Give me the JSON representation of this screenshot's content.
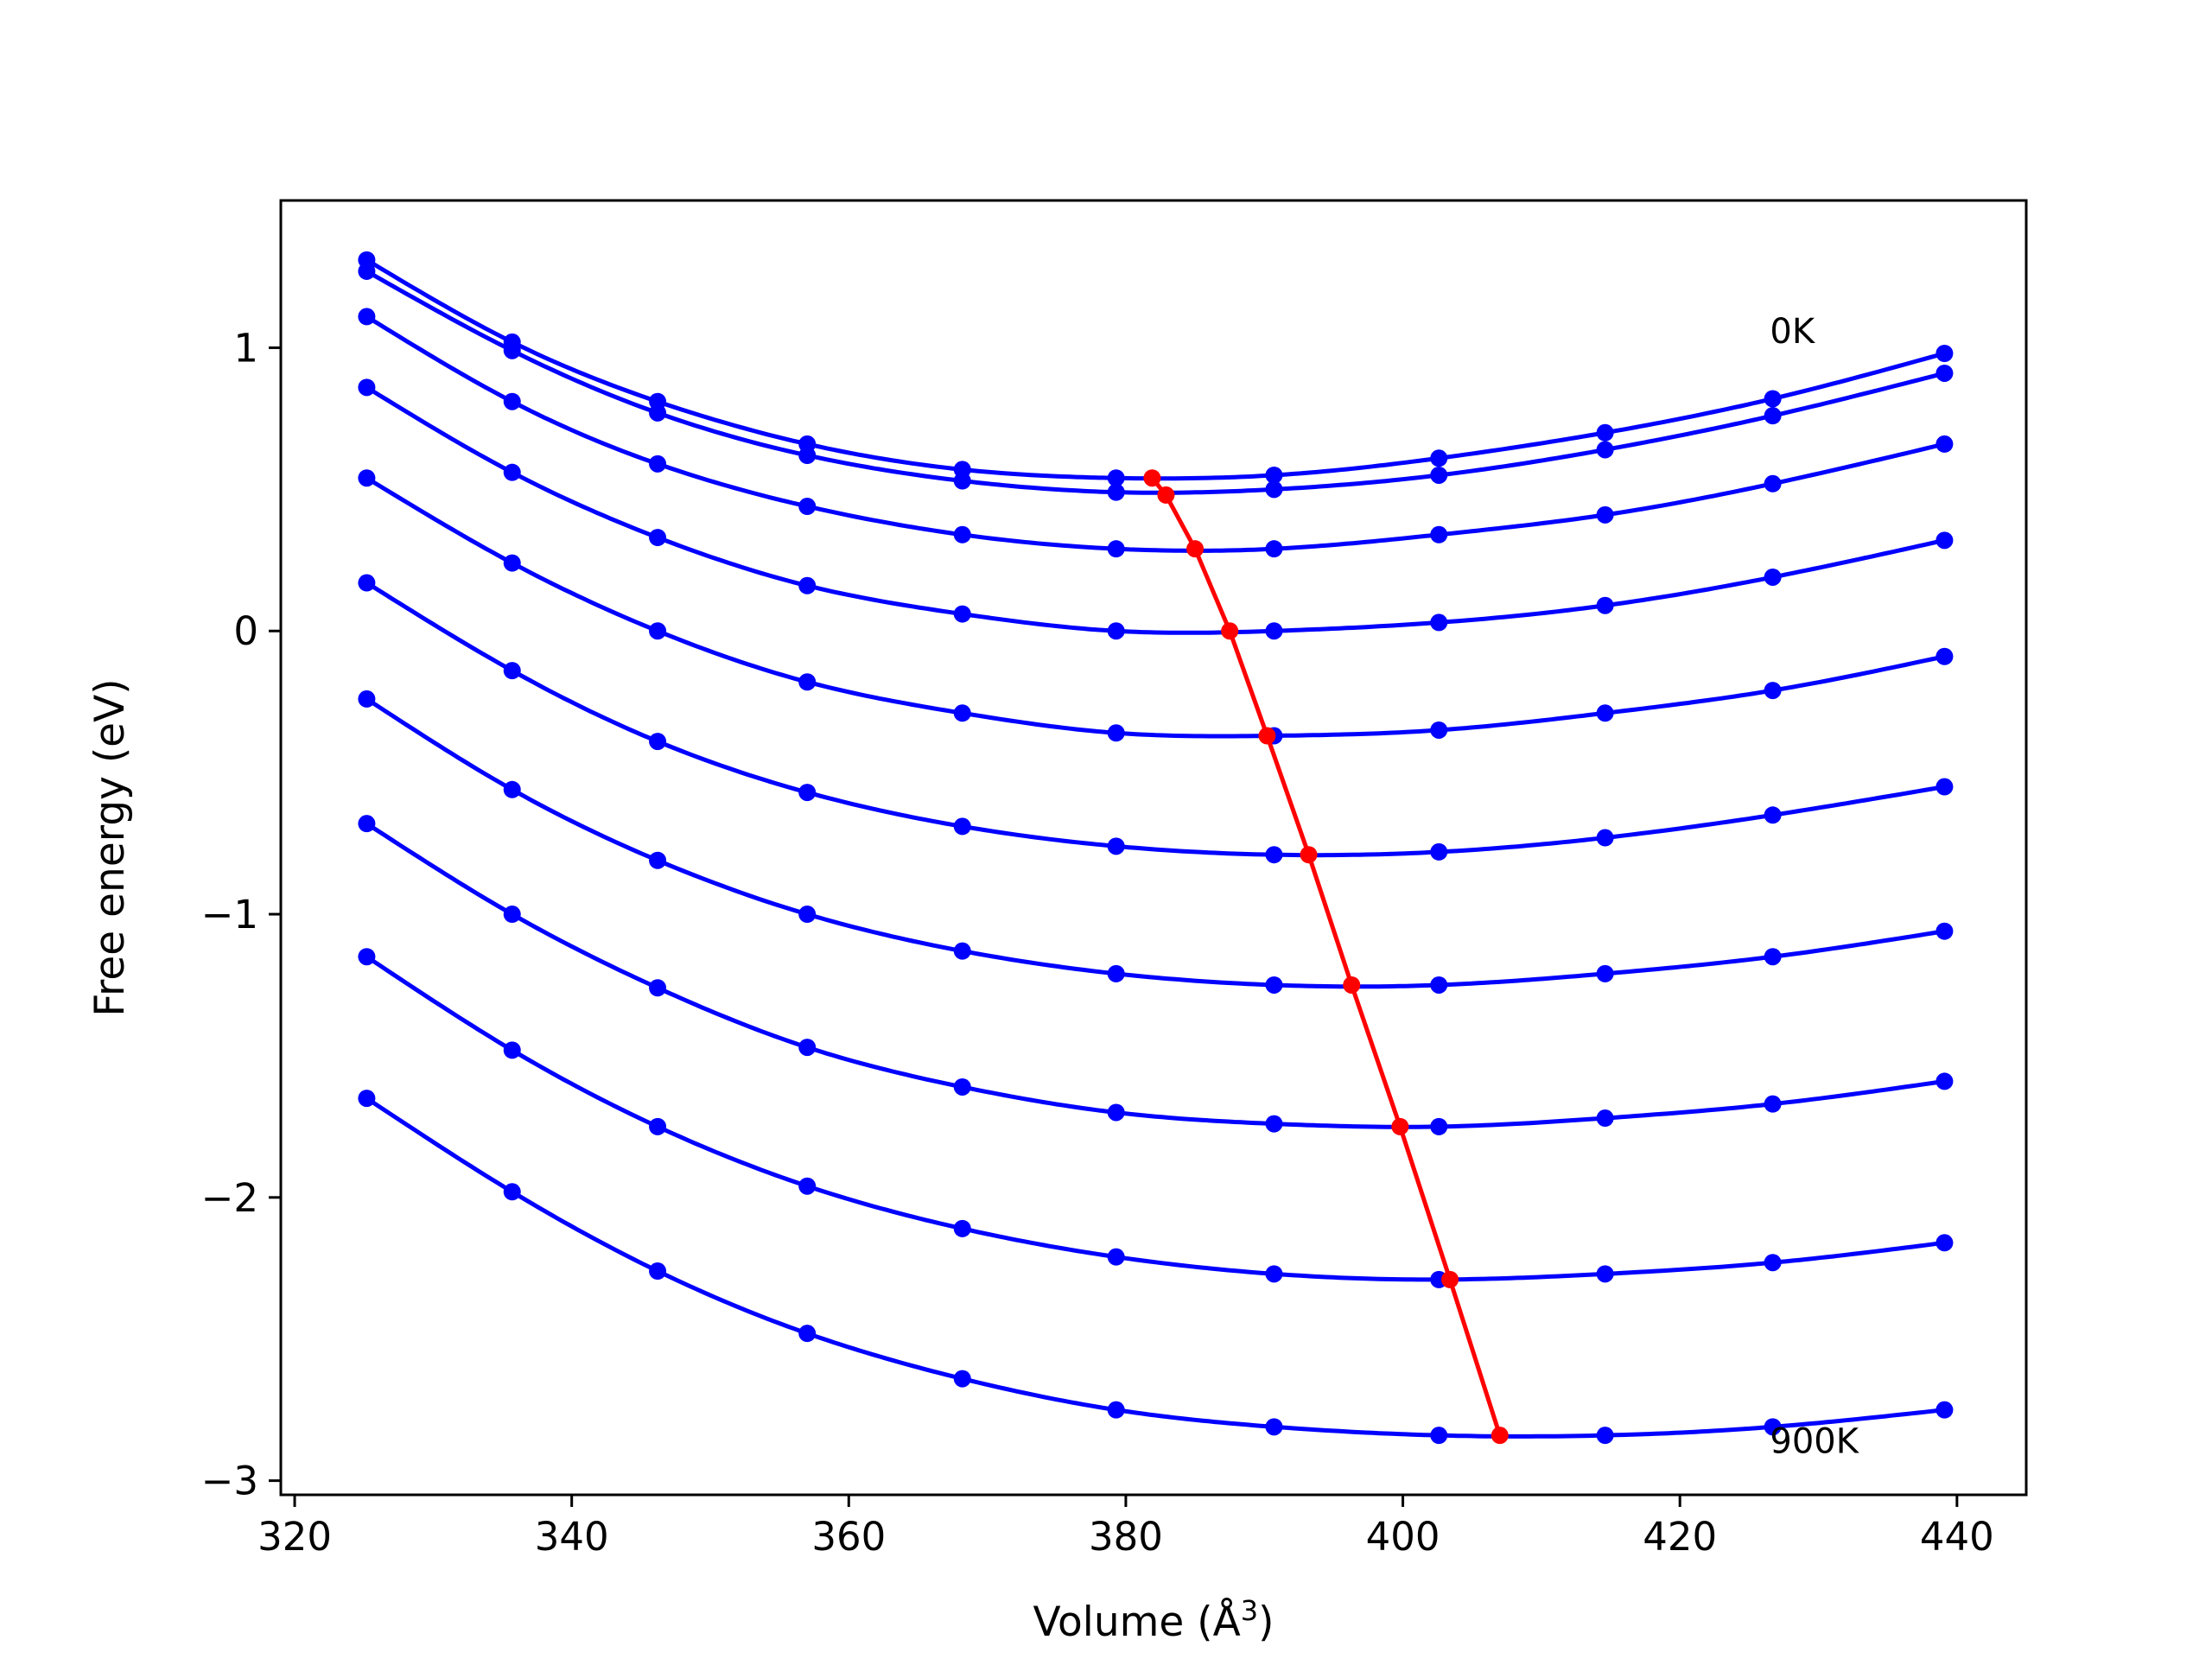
{
  "chart_data": {
    "type": "line",
    "title": "",
    "xlabel": "Volume (Å",
    "xlabel_sup": "3",
    "xlabel_close": ")",
    "ylabel": "Free energy (eV)",
    "xlim": [
      319,
      445
    ],
    "ylim": [
      -3.05,
      1.52
    ],
    "xticks": [
      320,
      340,
      360,
      380,
      400,
      420,
      440
    ],
    "xtick_labels": [
      "320",
      "340",
      "360",
      "380",
      "400",
      "420",
      "440"
    ],
    "yticks": [
      1,
      0,
      -1,
      -2,
      -3
    ],
    "ytick_labels": [
      "1",
      "0",
      "−1",
      "−2",
      "−3"
    ],
    "grid": false,
    "legend": "none",
    "annotations": [
      {
        "text": "0K",
        "x": 426.5,
        "y": 1.06
      },
      {
        "text": "900K",
        "x": 426.5,
        "y": -2.86
      }
    ],
    "colors": {
      "curves": "#0000ff",
      "minimum_path": "#ff0000",
      "axes": "#000000"
    },
    "volumes": [
      325.2,
      335.7,
      346.2,
      357.0,
      368.2,
      379.3,
      390.7,
      402.6,
      414.6,
      426.7,
      439.1
    ],
    "series": [
      {
        "values": [
          1.31,
          1.02,
          0.81,
          0.66,
          0.57,
          0.54,
          0.55,
          0.61,
          0.7,
          0.82,
          0.98
        ],
        "min": {
          "x": 381.9,
          "y": 0.54
        }
      },
      {
        "values": [
          1.27,
          0.99,
          0.77,
          0.62,
          0.53,
          0.49,
          0.5,
          0.55,
          0.64,
          0.76,
          0.91
        ],
        "min": {
          "x": 382.9,
          "y": 0.48
        }
      },
      {
        "values": [
          1.11,
          0.81,
          0.59,
          0.44,
          0.34,
          0.29,
          0.29,
          0.34,
          0.41,
          0.52,
          0.66
        ],
        "min": {
          "x": 385.0,
          "y": 0.29
        }
      },
      {
        "values": [
          0.86,
          0.56,
          0.33,
          0.16,
          0.06,
          0.0,
          0.0,
          0.03,
          0.09,
          0.19,
          0.32
        ],
        "min": {
          "x": 387.5,
          "y": 0.0
        }
      },
      {
        "values": [
          0.54,
          0.24,
          0.0,
          -0.18,
          -0.29,
          -0.36,
          -0.37,
          -0.35,
          -0.29,
          -0.21,
          -0.09
        ],
        "min": {
          "x": 390.2,
          "y": -0.37
        }
      },
      {
        "values": [
          0.17,
          -0.14,
          -0.39,
          -0.57,
          -0.69,
          -0.76,
          -0.79,
          -0.78,
          -0.73,
          -0.65,
          -0.55
        ],
        "min": {
          "x": 393.2,
          "y": -0.79
        }
      },
      {
        "values": [
          -0.24,
          -0.56,
          -0.81,
          -1.0,
          -1.13,
          -1.21,
          -1.25,
          -1.25,
          -1.21,
          -1.15,
          -1.06
        ],
        "min": {
          "x": 396.3,
          "y": -1.25
        }
      },
      {
        "values": [
          -0.68,
          -1.0,
          -1.26,
          -1.47,
          -1.61,
          -1.7,
          -1.74,
          -1.75,
          -1.72,
          -1.67,
          -1.59
        ],
        "min": {
          "x": 399.8,
          "y": -1.75
        }
      },
      {
        "values": [
          -1.15,
          -1.48,
          -1.75,
          -1.96,
          -2.11,
          -2.21,
          -2.27,
          -2.29,
          -2.27,
          -2.23,
          -2.16
        ],
        "min": {
          "x": 403.4,
          "y": -2.29
        }
      },
      {
        "values": [
          -1.65,
          -1.98,
          -2.26,
          -2.48,
          -2.64,
          -2.75,
          -2.81,
          -2.84,
          -2.84,
          -2.81,
          -2.75
        ],
        "min": {
          "x": 407.0,
          "y": -2.84
        }
      }
    ]
  }
}
